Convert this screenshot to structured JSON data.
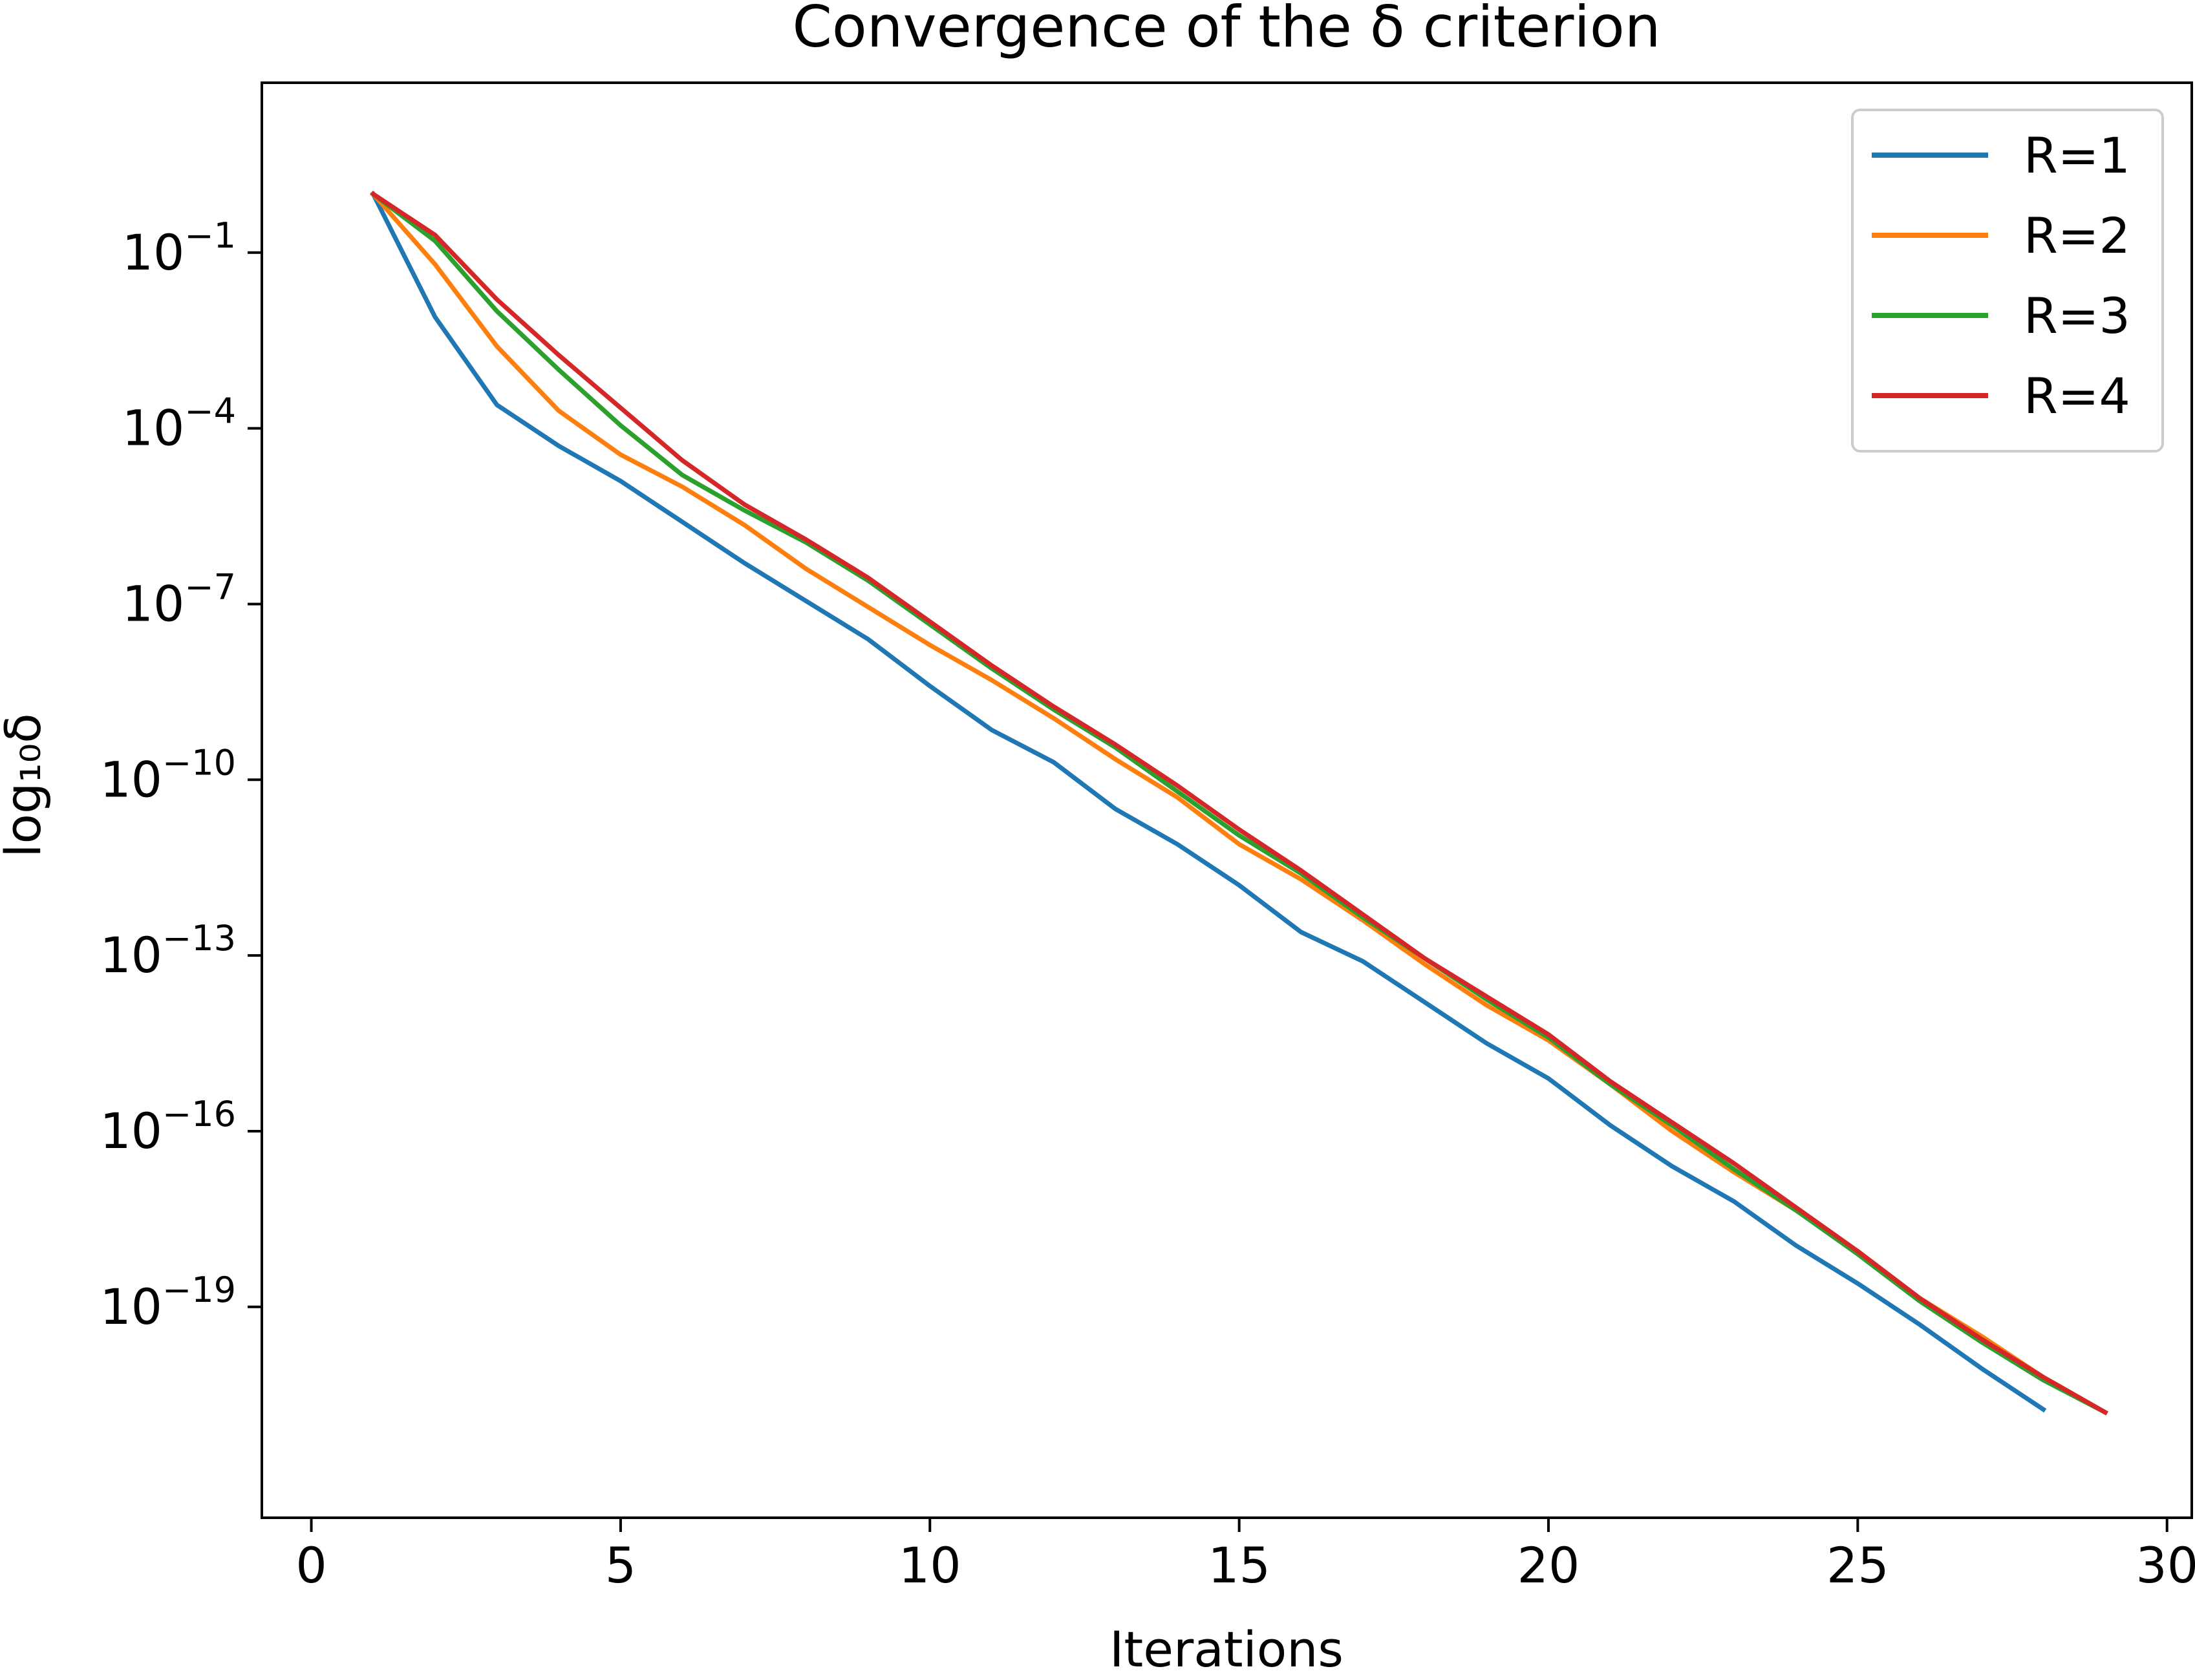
{
  "chart_data": {
    "type": "line",
    "title": "Convergence of the δ criterion",
    "xlabel": "Iterations",
    "ylabel": "log₁₀δ",
    "xlim": [
      -0.8,
      30.4
    ],
    "ylim_log10": [
      -22.6,
      1.9
    ],
    "y_scale": "log",
    "x_ticks": [
      0,
      5,
      10,
      15,
      20,
      25,
      30
    ],
    "x_tick_labels": [
      "0",
      "5",
      "10",
      "15",
      "20",
      "25",
      "30"
    ],
    "y_ticks_log10": [
      -1,
      -4,
      -7,
      -10,
      -13,
      -16,
      -19
    ],
    "y_tick_labels": [
      {
        "base": "10",
        "exp": "−1"
      },
      {
        "base": "10",
        "exp": "−4"
      },
      {
        "base": "10",
        "exp": "−7"
      },
      {
        "base": "10",
        "exp": "−10"
      },
      {
        "base": "10",
        "exp": "−13"
      },
      {
        "base": "10",
        "exp": "−16"
      },
      {
        "base": "10",
        "exp": "−19"
      }
    ],
    "grid": false,
    "legend_position": "top-right",
    "series": [
      {
        "name": "R=1",
        "color": "#1f77b4",
        "x": [
          1,
          2,
          3,
          4,
          5,
          6,
          7,
          8,
          9,
          10,
          11,
          12,
          13,
          14,
          15,
          16,
          17,
          18,
          19,
          20,
          21,
          22,
          23,
          24,
          25,
          26,
          27,
          28
        ],
        "log10_y": [
          0,
          -2.1,
          -3.6,
          -4.3,
          -4.9,
          -5.6,
          -6.3,
          -6.95,
          -7.6,
          -8.4,
          -9.15,
          -9.7,
          -10.5,
          -11.1,
          -11.8,
          -12.6,
          -13.1,
          -13.8,
          -14.5,
          -15.1,
          -15.9,
          -16.6,
          -17.2,
          -17.95,
          -18.6,
          -19.3,
          -20.05,
          -20.75
        ]
      },
      {
        "name": "R=2",
        "color": "#ff7f0e",
        "x": [
          1,
          2,
          3,
          4,
          5,
          6,
          7,
          8,
          9,
          10,
          11,
          12,
          13,
          14,
          15,
          16,
          17,
          18,
          19,
          20,
          21,
          22,
          23,
          24,
          25,
          26,
          27,
          28,
          29
        ],
        "log10_y": [
          0,
          -1.2,
          -2.6,
          -3.7,
          -4.45,
          -5.0,
          -5.65,
          -6.4,
          -7.05,
          -7.7,
          -8.3,
          -8.95,
          -9.65,
          -10.3,
          -11.1,
          -11.7,
          -12.4,
          -13.15,
          -13.85,
          -14.45,
          -15.2,
          -16.0,
          -16.7,
          -17.35,
          -18.05,
          -18.85,
          -19.5,
          -20.2,
          -20.8
        ]
      },
      {
        "name": "R=3",
        "color": "#2ca02c",
        "x": [
          1,
          2,
          3,
          4,
          5,
          6,
          7,
          8,
          9,
          10,
          11,
          12,
          13,
          14,
          15,
          16,
          17,
          18,
          19,
          20,
          21,
          22,
          23,
          24,
          25,
          26,
          27,
          28,
          29
        ],
        "log10_y": [
          0,
          -0.8,
          -2.0,
          -3.0,
          -3.95,
          -4.8,
          -5.4,
          -5.95,
          -6.6,
          -7.35,
          -8.1,
          -8.8,
          -9.45,
          -10.2,
          -10.95,
          -11.6,
          -12.35,
          -13.05,
          -13.75,
          -14.4,
          -15.2,
          -15.9,
          -16.65,
          -17.35,
          -18.1,
          -18.9,
          -19.6,
          -20.25,
          -20.8
        ]
      },
      {
        "name": "R=4",
        "color": "#d62728",
        "x": [
          1,
          2,
          3,
          4,
          5,
          6,
          7,
          8,
          9,
          10,
          11,
          12,
          13,
          14,
          15,
          16,
          17,
          18,
          19,
          20,
          21,
          22,
          23,
          24,
          25,
          26,
          27,
          28,
          29
        ],
        "log10_y": [
          0,
          -0.7,
          -1.8,
          -2.75,
          -3.65,
          -4.55,
          -5.3,
          -5.9,
          -6.55,
          -7.3,
          -8.05,
          -8.75,
          -9.4,
          -10.1,
          -10.85,
          -11.55,
          -12.3,
          -13.05,
          -13.7,
          -14.35,
          -15.15,
          -15.85,
          -16.55,
          -17.3,
          -18.05,
          -18.85,
          -19.55,
          -20.2,
          -20.8
        ]
      }
    ]
  }
}
